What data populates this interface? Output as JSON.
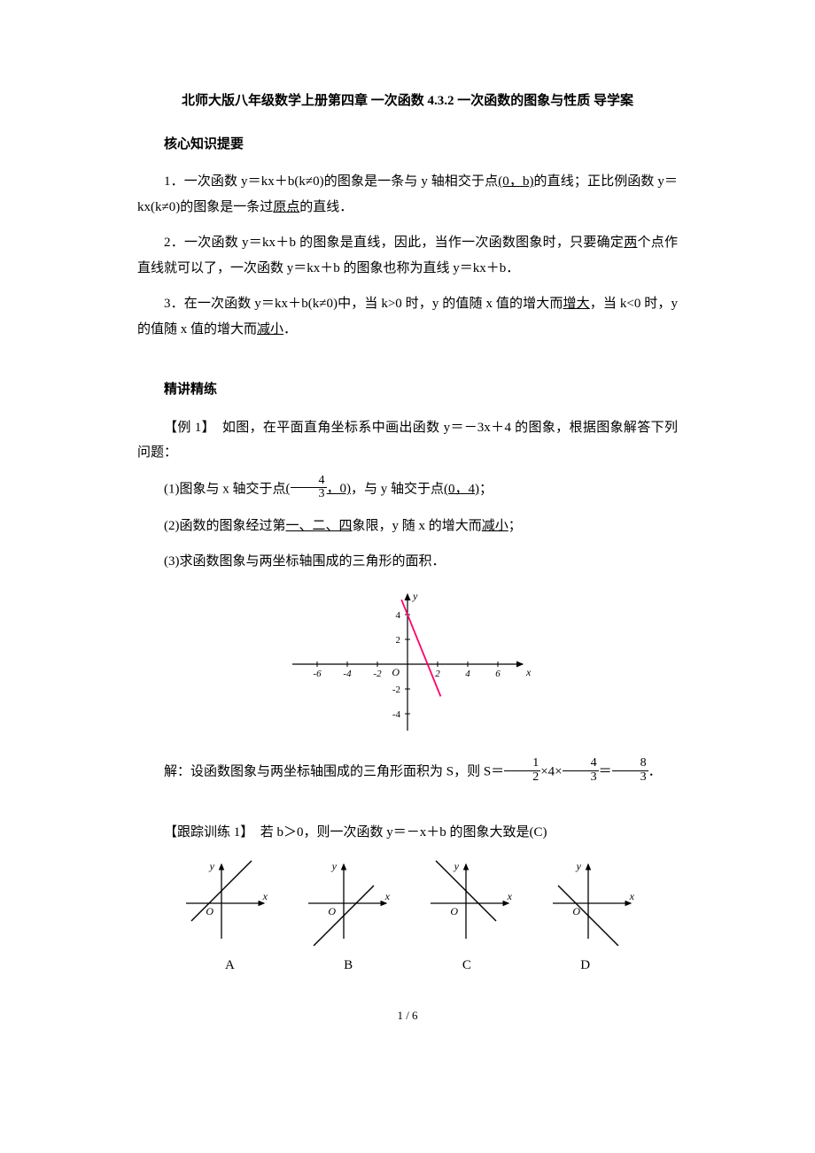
{
  "title": "北师大版八年级数学上册第四章  一次函数  4.3.2  一次函数的图象与性质  导学案",
  "sections": {
    "core_heading": "核心知识提要",
    "core": {
      "p1_a": "1．一次函数 y＝kx＋b(k≠0)的图象是一条与 y 轴相交于点",
      "p1_u": "(0，b)",
      "p1_b": "的直线；正比例函数 y＝kx(k≠0)的图象是一条过",
      "p1_u2": "原点",
      "p1_c": "的直线．",
      "p2_a": "2．一次函数 y＝kx＋b 的图象是直线，因此，当作一次函数图象时，只要确定",
      "p2_u": "两",
      "p2_b": "个点作直线就可以了，一次函数 y＝kx＋b 的图象也称为直线 y＝kx＋b．",
      "p3_a": "3．在一次函数 y＝kx＋b(k≠0)中，当 k>0 时，y 的值随 x 值的增大而",
      "p3_u": "增大",
      "p3_b": "，当 k<0 时，y 的值随 x 值的增大而",
      "p3_u2": "减小",
      "p3_c": "．"
    },
    "lecture_heading": "精讲精练",
    "ex1": {
      "lead": "【例 1】　如图，在平面直角坐标系中画出函数 y＝－3x＋4 的图象，根据图象解答下列问题：",
      "q1_a": "(1)图象与 x 轴交于点",
      "q1_fn": "4",
      "q1_fd": "3",
      "q1_mid": "，0)",
      "q1_b": "，与 y 轴交于点",
      "q1_u2": "(0，4)",
      "q1_c": "；",
      "q2_a": "(2)函数的图象经过第",
      "q2_u": "一、二、四",
      "q2_b": "象限，y 随 x 的增大而",
      "q2_u2": "减小",
      "q2_c": "；",
      "q3": "(3)求函数图象与两坐标轴围成的三角形的面积．",
      "sol_a": "解：设函数图象与两坐标轴围成的三角形面积为 S，则 S＝",
      "sol_f1n": "1",
      "sol_f1d": "2",
      "sol_m1": "×4×",
      "sol_f2n": "4",
      "sol_f2d": "3",
      "sol_m2": "＝",
      "sol_f3n": "8",
      "sol_f3d": "3",
      "sol_end": "．",
      "graph": {
        "xlabel": "x",
        "ylabel": "y",
        "xticks": [
          "-6",
          "-4",
          "-2",
          "2",
          "4",
          "6"
        ],
        "yticks_pos": [
          "2",
          "4"
        ],
        "yticks_neg": [
          "-2",
          "-4"
        ],
        "origin": "O",
        "line_color": "#ff0066",
        "axis_color": "#000000",
        "k": -3,
        "b": 4
      }
    },
    "track1": {
      "text": "【跟踪训练 1】　若 b＞0，则一次函数 y＝－x＋b 的图象大致是(C)",
      "labels": [
        "A",
        "B",
        "C",
        "D"
      ],
      "axis_label_x": "x",
      "axis_label_y": "y",
      "origin": "O",
      "axis_color": "#000000",
      "line_color": "#000000",
      "choices": [
        {
          "slope": 1,
          "intercept_sign": 1
        },
        {
          "slope": 1,
          "intercept_sign": -1
        },
        {
          "slope": -1,
          "intercept_sign": 1
        },
        {
          "slope": -1,
          "intercept_sign": -1
        }
      ]
    }
  },
  "page_number": "1 / 6"
}
